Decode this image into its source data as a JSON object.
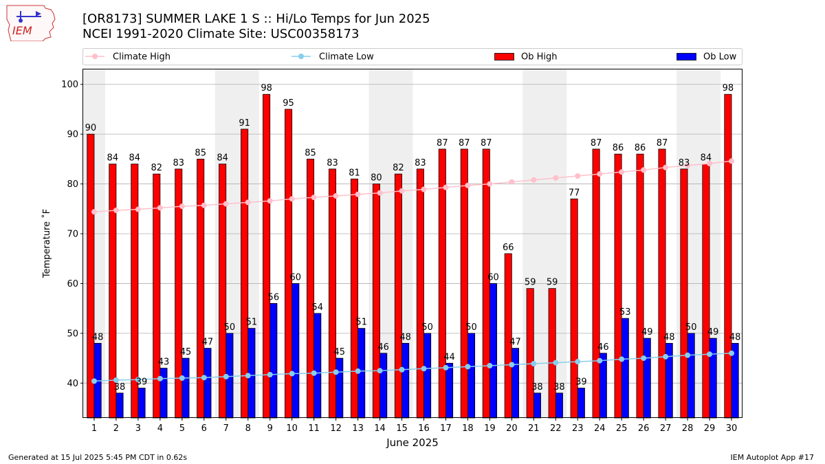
{
  "header": {
    "title_line1": "[OR8173] SUMMER LAKE 1 S :: Hi/Lo Temps for Jun 2025",
    "title_line2": "NCEI 1991-2020 Climate Site: USC00358173",
    "logo_text": "IEM"
  },
  "footer": {
    "left": "Generated at 15 Jul 2025 5:45 PM CDT in 0.62s",
    "right": "IEM Autoplot App #17"
  },
  "colors": {
    "ob_high": "#ff0000",
    "ob_low": "#0000ff",
    "climate_high": "#ffc0cb",
    "climate_low": "#87ceeb",
    "weekend_shade": "#efefef",
    "grid": "#b0b0b0"
  },
  "chart_data": {
    "type": "bar",
    "xlabel": "June 2025",
    "ylabel": "Temperature ˚F",
    "ylim": [
      33,
      103
    ],
    "yticks": [
      40,
      50,
      60,
      70,
      80,
      90,
      100
    ],
    "grid": "horizontal",
    "legend_placement": "top",
    "categories": [
      1,
      2,
      3,
      4,
      5,
      6,
      7,
      8,
      9,
      10,
      11,
      12,
      13,
      14,
      15,
      16,
      17,
      18,
      19,
      20,
      21,
      22,
      23,
      24,
      25,
      26,
      27,
      28,
      29,
      30
    ],
    "shaded_days": [
      1,
      7,
      8,
      14,
      15,
      21,
      22,
      28,
      29
    ],
    "series": [
      {
        "name": "Ob High",
        "kind": "bar",
        "values": [
          90,
          84,
          84,
          82,
          83,
          85,
          84,
          91,
          98,
          95,
          85,
          83,
          81,
          80,
          82,
          83,
          87,
          87,
          87,
          66,
          59,
          59,
          77,
          87,
          86,
          86,
          87,
          83,
          84,
          98
        ]
      },
      {
        "name": "Ob Low",
        "kind": "bar",
        "values": [
          48,
          38,
          39,
          43,
          45,
          47,
          50,
          51,
          56,
          60,
          54,
          45,
          51,
          46,
          48,
          50,
          44,
          50,
          60,
          47,
          38,
          38,
          39,
          46,
          53,
          49,
          48,
          50,
          49,
          48
        ]
      },
      {
        "name": "Climate High",
        "kind": "line",
        "values": [
          74.4,
          74.7,
          74.9,
          75.2,
          75.5,
          75.7,
          76.0,
          76.3,
          76.6,
          77.0,
          77.3,
          77.6,
          77.9,
          78.2,
          78.6,
          78.9,
          79.3,
          79.7,
          80.0,
          80.4,
          80.8,
          81.2,
          81.6,
          82.0,
          82.4,
          82.8,
          83.3,
          83.7,
          84.1,
          84.6
        ]
      },
      {
        "name": "Climate Low",
        "kind": "line",
        "values": [
          40.4,
          40.6,
          40.7,
          40.9,
          41.0,
          41.1,
          41.3,
          41.5,
          41.7,
          41.9,
          42.0,
          42.2,
          42.4,
          42.5,
          42.7,
          42.9,
          43.1,
          43.3,
          43.5,
          43.7,
          43.9,
          44.1,
          44.3,
          44.5,
          44.8,
          45.0,
          45.3,
          45.6,
          45.8,
          46.0
        ]
      }
    ]
  }
}
